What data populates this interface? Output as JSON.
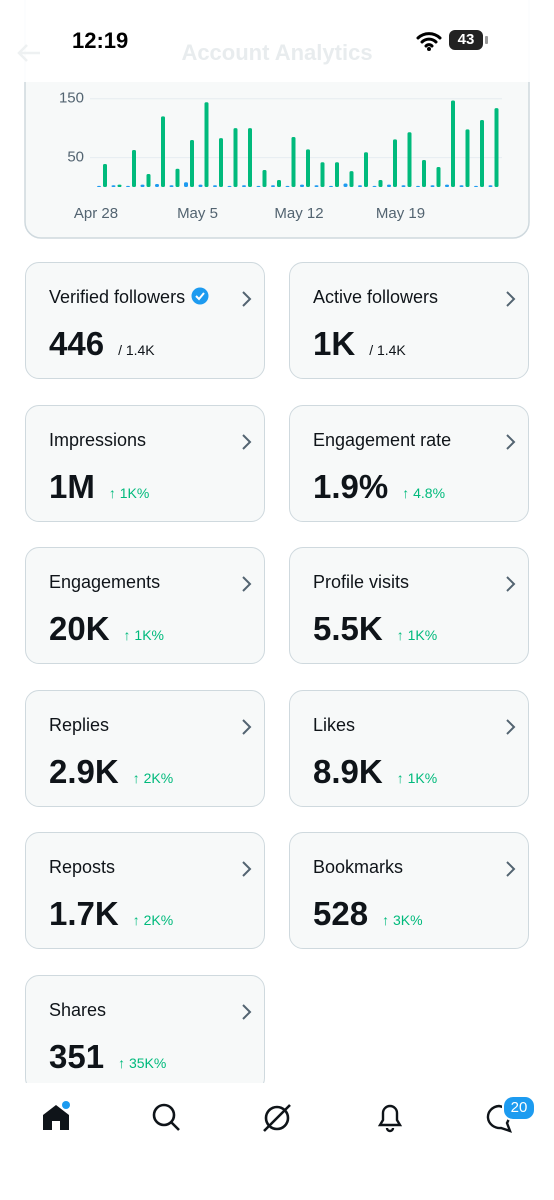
{
  "status_bar": {
    "time": "12:19",
    "battery": "43"
  },
  "header": {
    "title": "Account Analytics"
  },
  "chart_data": {
    "type": "bar",
    "categories": [
      "Apr 28",
      null,
      null,
      null,
      null,
      null,
      null,
      "May 5",
      null,
      null,
      null,
      null,
      null,
      null,
      "May 12",
      null,
      null,
      null,
      null,
      null,
      null,
      "May 19",
      null,
      null,
      null,
      null,
      null,
      null
    ],
    "series": [
      {
        "color": "#1d9bf0",
        "values": [
          2,
          3,
          2,
          4,
          5,
          3,
          8,
          4,
          3,
          2,
          3,
          2,
          3,
          2,
          4,
          3,
          2,
          6,
          3,
          2,
          4,
          3,
          2,
          3,
          4,
          3,
          2,
          3
        ]
      },
      {
        "color": "#00ba7c",
        "values": [
          39,
          4,
          63,
          22,
          120,
          31,
          80,
          144,
          83,
          100,
          100,
          29,
          12,
          85,
          64,
          42,
          42,
          27,
          59,
          12,
          81,
          93,
          46,
          34,
          147,
          98,
          114,
          134
        ]
      }
    ],
    "ylim": [
      0,
      170
    ],
    "yticks": [
      50,
      150
    ],
    "grid": true
  },
  "cards": [
    {
      "label": "Verified followers",
      "value": "446",
      "total": "/ 1.4K"
    },
    {
      "label": "Active followers",
      "value": "1K",
      "total": "/ 1.4K"
    },
    {
      "label": "Impressions",
      "value": "1M",
      "change": "↑ 1K%"
    },
    {
      "label": "Engagement rate",
      "value": "1.9%",
      "change": "↑ 4.8%"
    },
    {
      "label": "Engagements",
      "value": "20K",
      "change": "↑ 1K%"
    },
    {
      "label": "Profile visits",
      "value": "5.5K",
      "change": "↑ 1K%"
    },
    {
      "label": "Replies",
      "value": "2.9K",
      "change": "↑ 2K%"
    },
    {
      "label": "Likes",
      "value": "8.9K",
      "change": "↑ 1K%"
    },
    {
      "label": "Reposts",
      "value": "1.7K",
      "change": "↑ 2K%"
    },
    {
      "label": "Bookmarks",
      "value": "528",
      "change": "↑ 3K%"
    },
    {
      "label": "Shares",
      "value": "351",
      "change": "↑ 35K%"
    }
  ],
  "tab_bar": {
    "messages_badge": "20"
  }
}
